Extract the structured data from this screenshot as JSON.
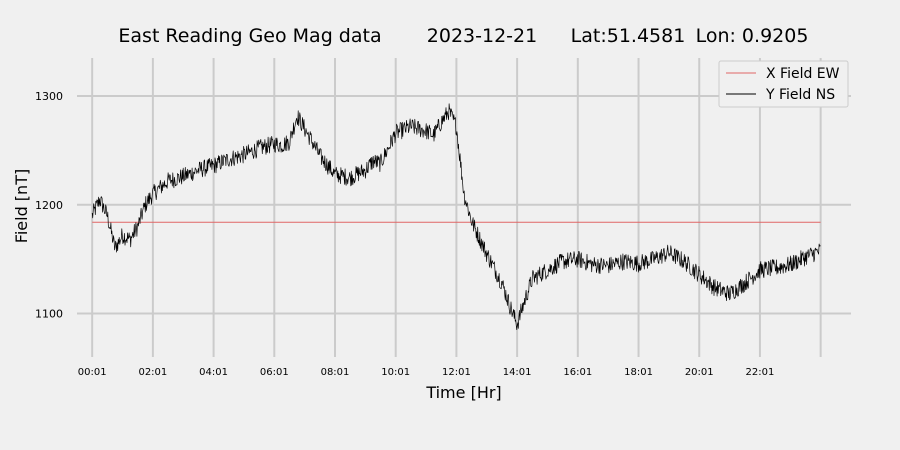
{
  "chart_data": {
    "type": "line",
    "title": {
      "name": "East Reading Geo Mag data",
      "date": "2023-12-21",
      "lat": "Lat:51.4581",
      "lon": "Lon: 0.9205"
    },
    "xlabel": "Time  [Hr]",
    "ylabel": "Field  [nT]",
    "x_unit": "hours",
    "xlim": [
      -0.5,
      25.0
    ],
    "ylim": [
      1060,
      1335
    ],
    "x_ticks": [
      {
        "x": 0.0,
        "label": "00:01"
      },
      {
        "x": 2.0,
        "label": "02:01"
      },
      {
        "x": 4.0,
        "label": "04:01"
      },
      {
        "x": 6.0,
        "label": "06:01"
      },
      {
        "x": 8.0,
        "label": "08:01"
      },
      {
        "x": 10.0,
        "label": "10:01"
      },
      {
        "x": 12.0,
        "label": "12:01"
      },
      {
        "x": 14.0,
        "label": "14:01"
      },
      {
        "x": 16.0,
        "label": "16:01"
      },
      {
        "x": 18.0,
        "label": "18:01"
      },
      {
        "x": 20.0,
        "label": "20:01"
      },
      {
        "x": 22.0,
        "label": "22:01"
      }
    ],
    "extra_vgrid_x": [
      24.0
    ],
    "y_ticks": [
      {
        "y": 1100,
        "label": "1100"
      },
      {
        "y": 1200,
        "label": "1200"
      },
      {
        "y": 1300,
        "label": "1300"
      }
    ],
    "grid": true,
    "legend_position": "top-right",
    "series": [
      {
        "name": "X Field EW",
        "color": "#e06666",
        "x": [
          0.0,
          24.0
        ],
        "y": [
          1184,
          1184
        ]
      },
      {
        "name": "Y Field NS",
        "color": "#000000",
        "noise": 5,
        "x": [
          0.0,
          0.25,
          0.5,
          0.75,
          1.0,
          1.25,
          1.5,
          1.75,
          2.0,
          2.5,
          3.0,
          3.5,
          4.0,
          4.5,
          5.0,
          5.5,
          6.0,
          6.25,
          6.5,
          6.75,
          7.0,
          7.25,
          7.5,
          8.0,
          8.5,
          9.0,
          9.25,
          9.5,
          10.0,
          10.5,
          11.0,
          11.25,
          11.5,
          11.75,
          12.0,
          12.25,
          12.5,
          13.0,
          13.5,
          13.75,
          14.0,
          14.25,
          14.5,
          15.0,
          15.5,
          16.0,
          16.5,
          17.0,
          17.5,
          18.0,
          18.5,
          19.0,
          19.5,
          20.0,
          20.5,
          21.0,
          21.5,
          22.0,
          22.5,
          23.0,
          23.5,
          24.0
        ],
        "y": [
          1190,
          1205,
          1190,
          1160,
          1172,
          1168,
          1180,
          1200,
          1210,
          1222,
          1226,
          1232,
          1236,
          1242,
          1246,
          1252,
          1256,
          1255,
          1258,
          1282,
          1270,
          1258,
          1245,
          1228,
          1225,
          1232,
          1240,
          1238,
          1266,
          1272,
          1268,
          1264,
          1276,
          1286,
          1272,
          1210,
          1185,
          1155,
          1128,
          1108,
          1090,
          1112,
          1132,
          1140,
          1148,
          1150,
          1145,
          1144,
          1148,
          1146,
          1150,
          1156,
          1148,
          1136,
          1124,
          1118,
          1128,
          1140,
          1142,
          1145,
          1152,
          1158
        ]
      }
    ]
  }
}
